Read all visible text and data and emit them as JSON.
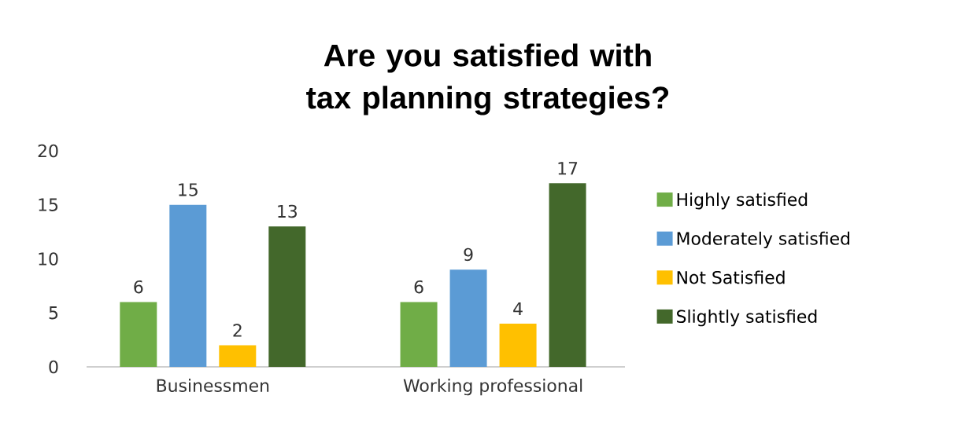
{
  "chart_data": {
    "type": "bar",
    "title": "Are you satisfied with tax planning strategies?",
    "categories": [
      "Businessmen",
      "Working professional"
    ],
    "series": [
      {
        "name": "Highly satisfied",
        "color": "#70ad47",
        "values": [
          6,
          6
        ]
      },
      {
        "name": "Moderately satisfied",
        "color": "#5b9bd5",
        "values": [
          15,
          9
        ]
      },
      {
        "name": "Not Satisfied",
        "color": "#ffc000",
        "values": [
          2,
          4
        ]
      },
      {
        "name": "Slightly satisfied",
        "color": "#43682b",
        "values": [
          13,
          17
        ]
      }
    ],
    "ylim": [
      0,
      20
    ],
    "yticks": [
      0,
      5,
      10,
      15,
      20
    ],
    "grid": false,
    "data_labels": true,
    "legend": "right"
  }
}
